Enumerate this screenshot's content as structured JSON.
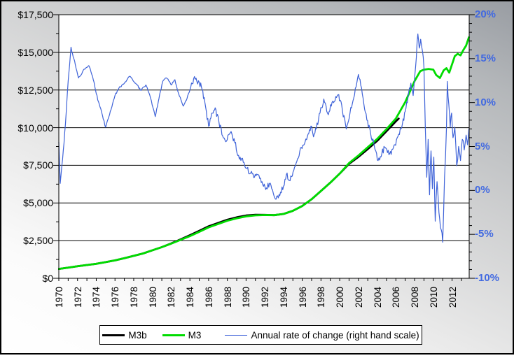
{
  "colors": {
    "m3b_line": "#000000",
    "m3_line": "#00dc00",
    "rate_line": "#3f63d8",
    "right_axis_label": "#4169e1",
    "axis_and_grid": "#000000",
    "plot_background": "#ffffff"
  },
  "chart_data": {
    "type": "line",
    "title": "",
    "grid": "horizontal-on",
    "legend_position": "bottom",
    "left_axis": {
      "range": [
        0,
        17500
      ],
      "major_step": 2500,
      "minor_step": 1250,
      "tick_labels": [
        "$17,500",
        "$15,000",
        "$12,500",
        "$10,000",
        "$7,500",
        "$5,000",
        "$2,500",
        "$0"
      ],
      "tick_values": [
        17500,
        15000,
        12500,
        10000,
        7500,
        5000,
        2500,
        0
      ]
    },
    "right_axis": {
      "range": [
        -10,
        20
      ],
      "major_step": 5,
      "minor_step": 1,
      "tick_labels": [
        "20%",
        "15%",
        "10%",
        "5%",
        "0%",
        "-5%",
        "-10%"
      ],
      "tick_values": [
        20,
        15,
        10,
        5,
        0,
        -5,
        -10
      ]
    },
    "x_axis": {
      "start_year": 1970,
      "end_year": 2013,
      "tick_every_years": 1,
      "label_every_years": 2,
      "tick_labels": [
        "1970",
        "1972",
        "1974",
        "1976",
        "1978",
        "1980",
        "1982",
        "1984",
        "1986",
        "1988",
        "1990",
        "1992",
        "1994",
        "1996",
        "1998",
        "2000",
        "2002",
        "2004",
        "2006",
        "2008",
        "2010",
        "2012"
      ]
    },
    "legend": {
      "items": [
        {
          "label": "M3b",
          "color": "#000000",
          "line_width": 3
        },
        {
          "label": "M3",
          "color": "#00dc00",
          "line_width": 3
        },
        {
          "label": "Annual rate of change (right hand scale)",
          "color": "#3f63d8",
          "line_width": 1
        }
      ]
    },
    "series": [
      {
        "name": "M3b",
        "axis": "left",
        "color": "#000000",
        "width": 2.8,
        "jitter": 0,
        "points": [
          [
            1970,
            620
          ],
          [
            1971,
            710
          ],
          [
            1972,
            800
          ],
          [
            1973,
            880
          ],
          [
            1974,
            960
          ],
          [
            1975,
            1070
          ],
          [
            1976,
            1190
          ],
          [
            1977,
            1330
          ],
          [
            1978,
            1490
          ],
          [
            1979,
            1650
          ],
          [
            1980,
            1860
          ],
          [
            1981,
            2070
          ],
          [
            1982,
            2310
          ],
          [
            1983,
            2580
          ],
          [
            1984,
            2860
          ],
          [
            1985,
            3150
          ],
          [
            1986,
            3450
          ],
          [
            1987,
            3670
          ],
          [
            1988,
            3890
          ],
          [
            1989,
            4050
          ],
          [
            1990,
            4170
          ],
          [
            1991,
            4220
          ],
          [
            1992,
            4210
          ],
          [
            1993,
            4190
          ],
          [
            1994,
            4270
          ],
          [
            1995,
            4480
          ],
          [
            1996,
            4800
          ],
          [
            1997,
            5250
          ],
          [
            1998,
            5800
          ],
          [
            1999,
            6350
          ],
          [
            2000,
            6950
          ],
          [
            2001,
            7600
          ],
          [
            2002,
            8060
          ],
          [
            2003,
            8580
          ],
          [
            2004,
            9120
          ],
          [
            2005,
            9760
          ],
          [
            2006,
            10420
          ],
          [
            2006.3,
            10600
          ]
        ]
      },
      {
        "name": "M3",
        "axis": "left",
        "color": "#00dc00",
        "width": 2.8,
        "jitter": 0,
        "points": [
          [
            1970,
            620
          ],
          [
            1971,
            710
          ],
          [
            1972,
            800
          ],
          [
            1973,
            880
          ],
          [
            1974,
            960
          ],
          [
            1975,
            1070
          ],
          [
            1976,
            1190
          ],
          [
            1977,
            1330
          ],
          [
            1978,
            1490
          ],
          [
            1979,
            1650
          ],
          [
            1980,
            1860
          ],
          [
            1981,
            2070
          ],
          [
            1982,
            2300
          ],
          [
            1983,
            2550
          ],
          [
            1984,
            2800
          ],
          [
            1985,
            3080
          ],
          [
            1986,
            3380
          ],
          [
            1987,
            3600
          ],
          [
            1988,
            3820
          ],
          [
            1989,
            3980
          ],
          [
            1990,
            4110
          ],
          [
            1991,
            4180
          ],
          [
            1992,
            4200
          ],
          [
            1993,
            4190
          ],
          [
            1994,
            4270
          ],
          [
            1995,
            4480
          ],
          [
            1996,
            4800
          ],
          [
            1997,
            5250
          ],
          [
            1998,
            5800
          ],
          [
            1999,
            6350
          ],
          [
            2000,
            6950
          ],
          [
            2001,
            7650
          ],
          [
            2002,
            8150
          ],
          [
            2003,
            8700
          ],
          [
            2004,
            9250
          ],
          [
            2005,
            9900
          ],
          [
            2006,
            10600
          ],
          [
            2007,
            11700
          ],
          [
            2008,
            13100
          ],
          [
            2008.6,
            13750
          ],
          [
            2009,
            13850
          ],
          [
            2009.5,
            13900
          ],
          [
            2010,
            13850
          ],
          [
            2010.3,
            13500
          ],
          [
            2010.7,
            13300
          ],
          [
            2011.1,
            13800
          ],
          [
            2011.4,
            13950
          ],
          [
            2011.7,
            13650
          ],
          [
            2012,
            14200
          ],
          [
            2012.3,
            14750
          ],
          [
            2012.6,
            14900
          ],
          [
            2012.9,
            14800
          ],
          [
            2013.2,
            15150
          ],
          [
            2013.5,
            15450
          ],
          [
            2013.8,
            16000
          ]
        ]
      },
      {
        "name": "Annual rate of change (right hand scale)",
        "axis": "right",
        "color": "#3f63d8",
        "width": 1.2,
        "jitter": 1,
        "points": [
          [
            1970,
            5.5
          ],
          [
            1970.15,
            0.8
          ],
          [
            1970.4,
            3.5
          ],
          [
            1970.7,
            7.5
          ],
          [
            1971,
            12.5
          ],
          [
            1971.3,
            16.3
          ],
          [
            1971.6,
            15
          ],
          [
            1972.1,
            12.8
          ],
          [
            1972.7,
            13.8
          ],
          [
            1973.2,
            14.2
          ],
          [
            1973.6,
            13
          ],
          [
            1974,
            11
          ],
          [
            1974.4,
            9.5
          ],
          [
            1975,
            7.2
          ],
          [
            1975.5,
            9
          ],
          [
            1976,
            10.8
          ],
          [
            1976.5,
            11.8
          ],
          [
            1977,
            12.2
          ],
          [
            1977.6,
            13
          ],
          [
            1978.2,
            12.2
          ],
          [
            1978.8,
            11.4
          ],
          [
            1979.3,
            12
          ],
          [
            1979.8,
            10.5
          ],
          [
            1980.3,
            8.4
          ],
          [
            1980.7,
            10.5
          ],
          [
            1981.1,
            12.4
          ],
          [
            1981.5,
            12.8
          ],
          [
            1982,
            12
          ],
          [
            1982.4,
            12.6
          ],
          [
            1982.8,
            11
          ],
          [
            1983.3,
            9.6
          ],
          [
            1983.7,
            10.5
          ],
          [
            1984.1,
            11.8
          ],
          [
            1984.4,
            12.7
          ],
          [
            1985,
            12.3
          ],
          [
            1985.3,
            11.5
          ],
          [
            1985.6,
            10
          ],
          [
            1986,
            7.3
          ],
          [
            1986.4,
            8.8
          ],
          [
            1986.7,
            9.4
          ],
          [
            1987.1,
            7.8
          ],
          [
            1987.5,
            6.2
          ],
          [
            1987.9,
            5.6
          ],
          [
            1988.4,
            6.7
          ],
          [
            1988.8,
            5.4
          ],
          [
            1989.2,
            4
          ],
          [
            1989.7,
            3.2
          ],
          [
            1990.1,
            2.5
          ],
          [
            1990.5,
            2
          ],
          [
            1990.9,
            1.5
          ],
          [
            1991.3,
            1.8
          ],
          [
            1991.7,
            1
          ],
          [
            1992.1,
            0.1
          ],
          [
            1992.5,
            0.8
          ],
          [
            1992.9,
            -0.3
          ],
          [
            1993.2,
            -1
          ],
          [
            1993.6,
            -0.6
          ],
          [
            1994,
            0.5
          ],
          [
            1994.3,
            1.8
          ],
          [
            1994.7,
            1.1
          ],
          [
            1995.1,
            2.3
          ],
          [
            1995.5,
            3.6
          ],
          [
            1995.9,
            4.9
          ],
          [
            1996.3,
            5.5
          ],
          [
            1996.7,
            6.5
          ],
          [
            1997,
            7.3
          ],
          [
            1997.2,
            6.1
          ],
          [
            1997.5,
            7
          ],
          [
            1997.9,
            8.8
          ],
          [
            1998.3,
            10.4
          ],
          [
            1998.7,
            8.8
          ],
          [
            1999.1,
            9.6
          ],
          [
            1999.5,
            10.2
          ],
          [
            1999.9,
            10.9
          ],
          [
            2000.3,
            9
          ],
          [
            2000.7,
            7
          ],
          [
            2001.1,
            8.8
          ],
          [
            2001.5,
            10.5
          ],
          [
            2002,
            13.2
          ],
          [
            2002.5,
            10.5
          ],
          [
            2002.9,
            8
          ],
          [
            2003.3,
            6.5
          ],
          [
            2003.7,
            5
          ],
          [
            2004.1,
            3.4
          ],
          [
            2004.5,
            4.2
          ],
          [
            2004.8,
            4.9
          ],
          [
            2005.1,
            4.3
          ],
          [
            2005.5,
            4.1
          ],
          [
            2005.9,
            5.2
          ],
          [
            2006.3,
            6.4
          ],
          [
            2006.7,
            7.6
          ],
          [
            2007,
            9
          ],
          [
            2007.3,
            10.6
          ],
          [
            2007.6,
            12.2
          ],
          [
            2007.85,
            10.8
          ],
          [
            2008.1,
            14
          ],
          [
            2008.35,
            17.8
          ],
          [
            2008.5,
            16.2
          ],
          [
            2008.65,
            17.2
          ],
          [
            2008.85,
            15.8
          ],
          [
            2009,
            14
          ],
          [
            2009.15,
            7
          ],
          [
            2009.3,
            1.5
          ],
          [
            2009.45,
            5.8
          ],
          [
            2009.6,
            -0.5
          ],
          [
            2009.75,
            4.5
          ],
          [
            2009.9,
            0.2
          ],
          [
            2010.05,
            3.8
          ],
          [
            2010.2,
            -3.5
          ],
          [
            2010.4,
            1
          ],
          [
            2010.6,
            -2.5
          ],
          [
            2010.85,
            -4.5
          ],
          [
            2011,
            -5.9
          ],
          [
            2011.2,
            1.5
          ],
          [
            2011.4,
            7
          ],
          [
            2011.5,
            12.4
          ],
          [
            2011.65,
            9.8
          ],
          [
            2011.8,
            7.2
          ],
          [
            2011.95,
            8.8
          ],
          [
            2012.1,
            6
          ],
          [
            2012.3,
            7.2
          ],
          [
            2012.5,
            2.8
          ],
          [
            2012.7,
            5
          ],
          [
            2012.9,
            3.4
          ],
          [
            2013.1,
            5.8
          ],
          [
            2013.3,
            4.6
          ],
          [
            2013.5,
            6.3
          ],
          [
            2013.65,
            5.2
          ],
          [
            2013.8,
            7
          ]
        ]
      }
    ]
  }
}
